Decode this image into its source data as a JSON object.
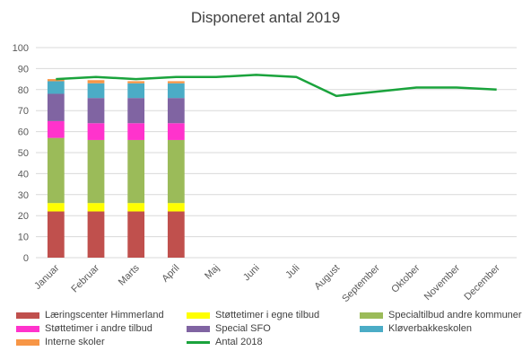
{
  "chart_data": {
    "type": "bar",
    "title": "Disponeret antal 2019",
    "categories": [
      "Januar",
      "Februar",
      "Marts",
      "April",
      "Maj",
      "Juni",
      "Juli",
      "August",
      "September",
      "Oktober",
      "November",
      "December"
    ],
    "ylim": [
      0,
      100
    ],
    "yticks": [
      0,
      10,
      20,
      30,
      40,
      50,
      60,
      70,
      80,
      90,
      100
    ],
    "grid": true,
    "legend_position": "bottom",
    "stacked": true,
    "series": [
      {
        "name": "Læringscenter Himmerland",
        "color": "#c0504d",
        "values": [
          22,
          22,
          22,
          22,
          null,
          null,
          null,
          null,
          null,
          null,
          null,
          null
        ]
      },
      {
        "name": "Støttetimer i egne tilbud",
        "color": "#ffff00",
        "values": [
          4,
          4,
          4,
          4,
          null,
          null,
          null,
          null,
          null,
          null,
          null,
          null
        ]
      },
      {
        "name": "Specialtilbud andre kommuner",
        "color": "#9bbb59",
        "values": [
          31,
          30,
          30,
          30,
          null,
          null,
          null,
          null,
          null,
          null,
          null,
          null
        ]
      },
      {
        "name": "Støttetimer i andre tilbud",
        "color": "#ff33cc",
        "values": [
          8,
          8,
          8,
          8,
          null,
          null,
          null,
          null,
          null,
          null,
          null,
          null
        ]
      },
      {
        "name": "Special SFO",
        "color": "#8064a2",
        "values": [
          13,
          12,
          12,
          12,
          null,
          null,
          null,
          null,
          null,
          null,
          null,
          null
        ]
      },
      {
        "name": "Kløverbakkeskolen",
        "color": "#4bacc6",
        "values": [
          6,
          7,
          7,
          7,
          null,
          null,
          null,
          null,
          null,
          null,
          null,
          null
        ]
      },
      {
        "name": "Interne skoler",
        "color": "#f79646",
        "values": [
          1,
          1.5,
          1,
          1,
          null,
          null,
          null,
          null,
          null,
          null,
          null,
          null
        ]
      }
    ],
    "line_series": {
      "name": "Antal 2018",
      "color": "#1aa33c",
      "values": [
        85,
        86,
        85,
        86,
        86,
        87,
        86,
        77,
        79,
        81,
        81,
        80
      ]
    }
  }
}
